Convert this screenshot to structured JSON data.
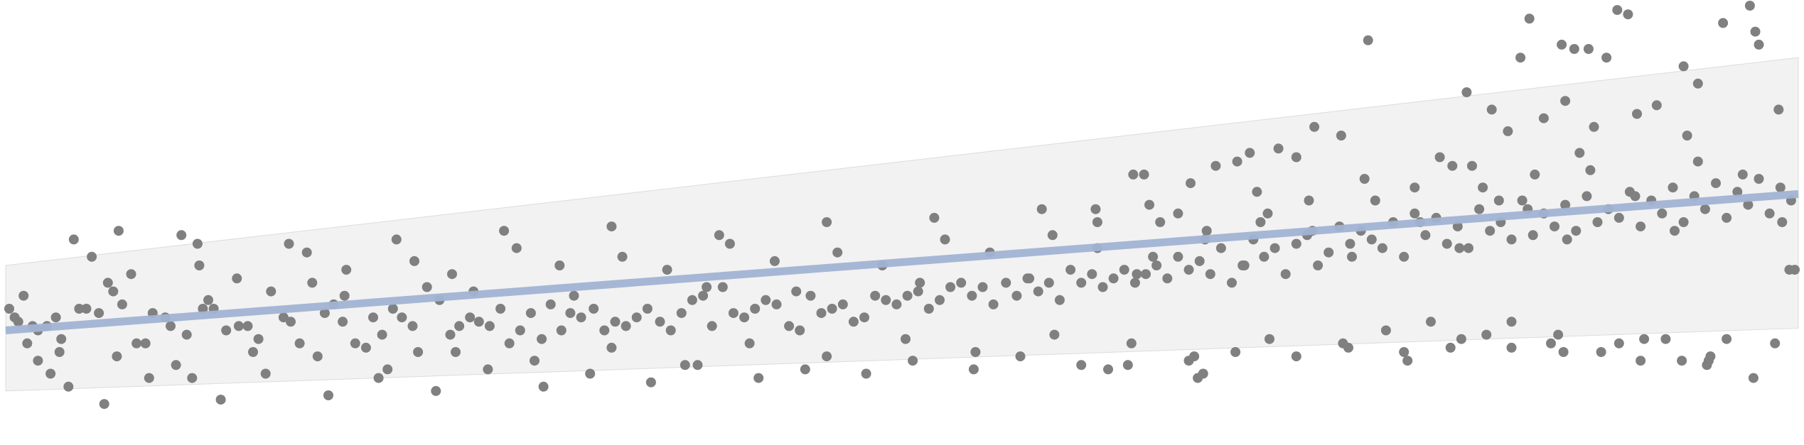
{
  "chart_data": {
    "type": "scatter",
    "title": "",
    "xlabel": "",
    "ylabel": "",
    "xlim": [
      0,
      100
    ],
    "ylim": [
      0,
      100
    ],
    "grid": false,
    "colors": {
      "points": "#808080",
      "trend_line": "#a1b4d4",
      "band_fill": "#f2f2f2",
      "band_edge": "#dcdcdc"
    },
    "trend": {
      "x": [
        0,
        100
      ],
      "y": [
        25,
        56.5
      ]
    },
    "band": {
      "upper": {
        "x": [
          0,
          100
        ],
        "y": [
          40,
          88
        ]
      },
      "lower": {
        "x": [
          0,
          100
        ],
        "y": [
          11,
          25.5
        ]
      }
    },
    "points": [
      [
        0.2,
        30
      ],
      [
        0.5,
        28
      ],
      [
        0.7,
        27
      ],
      [
        1.2,
        22
      ],
      [
        1.5,
        26
      ],
      [
        1.8,
        25
      ],
      [
        2.3,
        26
      ],
      [
        2.8,
        28
      ],
      [
        3.1,
        23
      ],
      [
        3.5,
        12
      ],
      [
        4.1,
        30
      ],
      [
        4.5,
        30
      ],
      [
        5.2,
        29
      ],
      [
        5.7,
        36
      ],
      [
        6.0,
        34
      ],
      [
        6.5,
        31
      ],
      [
        7.3,
        22
      ],
      [
        7.8,
        22
      ],
      [
        8.2,
        29
      ],
      [
        8.9,
        28
      ],
      [
        9.2,
        26
      ],
      [
        10.1,
        24
      ],
      [
        10.4,
        14
      ],
      [
        11.0,
        30
      ],
      [
        11.6,
        30
      ],
      [
        12.3,
        25
      ],
      [
        13.0,
        26
      ],
      [
        13.5,
        26
      ],
      [
        14.1,
        23
      ],
      [
        14.8,
        34
      ],
      [
        15.5,
        28
      ],
      [
        15.9,
        27
      ],
      [
        16.4,
        22
      ],
      [
        17.1,
        36
      ],
      [
        17.8,
        29
      ],
      [
        18.3,
        31
      ],
      [
        18.8,
        27
      ],
      [
        19.5,
        22
      ],
      [
        20.1,
        21
      ],
      [
        20.5,
        28
      ],
      [
        21.0,
        24
      ],
      [
        21.6,
        30
      ],
      [
        22.1,
        28
      ],
      [
        22.7,
        26
      ],
      [
        23.0,
        20
      ],
      [
        23.5,
        35
      ],
      [
        24.2,
        32
      ],
      [
        24.8,
        24
      ],
      [
        25.3,
        26
      ],
      [
        25.9,
        28
      ],
      [
        26.4,
        27
      ],
      [
        27.0,
        26
      ],
      [
        27.6,
        30
      ],
      [
        28.1,
        22
      ],
      [
        28.7,
        25
      ],
      [
        29.3,
        29
      ],
      [
        29.9,
        23
      ],
      [
        30.4,
        31
      ],
      [
        31.0,
        25
      ],
      [
        31.5,
        29
      ],
      [
        32.1,
        28
      ],
      [
        32.8,
        30
      ],
      [
        33.4,
        25
      ],
      [
        34.0,
        27
      ],
      [
        34.6,
        26
      ],
      [
        35.2,
        28
      ],
      [
        35.8,
        30
      ],
      [
        36.5,
        27
      ],
      [
        37.1,
        25
      ],
      [
        37.7,
        29
      ],
      [
        38.3,
        32
      ],
      [
        38.9,
        33
      ],
      [
        39.4,
        26
      ],
      [
        40.0,
        35
      ],
      [
        40.6,
        29
      ],
      [
        41.2,
        28
      ],
      [
        41.8,
        30
      ],
      [
        42.4,
        32
      ],
      [
        43.0,
        31
      ],
      [
        43.7,
        26
      ],
      [
        44.3,
        25
      ],
      [
        44.9,
        33
      ],
      [
        45.5,
        29
      ],
      [
        46.1,
        30
      ],
      [
        46.7,
        31
      ],
      [
        47.3,
        27
      ],
      [
        47.9,
        28
      ],
      [
        48.5,
        33
      ],
      [
        49.1,
        32
      ],
      [
        49.7,
        31
      ],
      [
        50.3,
        33
      ],
      [
        50.9,
        34
      ],
      [
        51.5,
        30
      ],
      [
        52.1,
        32
      ],
      [
        52.7,
        35
      ],
      [
        53.3,
        36
      ],
      [
        53.9,
        33
      ],
      [
        54.5,
        35
      ],
      [
        55.1,
        31
      ],
      [
        55.8,
        36
      ],
      [
        56.4,
        33
      ],
      [
        57.0,
        37
      ],
      [
        57.6,
        34
      ],
      [
        58.2,
        36
      ],
      [
        58.8,
        32
      ],
      [
        59.4,
        39
      ],
      [
        60.0,
        36
      ],
      [
        60.6,
        38
      ],
      [
        61.2,
        35
      ],
      [
        61.8,
        37
      ],
      [
        62.4,
        39
      ],
      [
        63.0,
        36
      ],
      [
        63.6,
        38
      ],
      [
        64.2,
        40
      ],
      [
        64.8,
        37
      ],
      [
        65.4,
        42
      ],
      [
        66.0,
        39
      ],
      [
        66.6,
        41
      ],
      [
        67.2,
        38
      ],
      [
        67.8,
        44
      ],
      [
        68.4,
        36
      ],
      [
        69.0,
        40
      ],
      [
        69.6,
        46
      ],
      [
        70.2,
        42
      ],
      [
        70.8,
        44
      ],
      [
        71.4,
        38
      ],
      [
        72.0,
        45
      ],
      [
        72.6,
        47
      ],
      [
        73.2,
        40
      ],
      [
        73.8,
        43
      ],
      [
        74.4,
        49
      ],
      [
        75.0,
        45
      ],
      [
        75.6,
        48
      ],
      [
        76.2,
        46
      ],
      [
        76.8,
        44
      ],
      [
        77.4,
        50
      ],
      [
        78.0,
        42
      ],
      [
        78.6,
        52
      ],
      [
        79.2,
        47
      ],
      [
        79.8,
        51
      ],
      [
        80.4,
        45
      ],
      [
        81.0,
        49
      ],
      [
        81.6,
        44
      ],
      [
        82.2,
        53
      ],
      [
        82.8,
        48
      ],
      [
        83.4,
        50
      ],
      [
        84.0,
        46
      ],
      [
        84.6,
        55
      ],
      [
        85.2,
        47
      ],
      [
        85.8,
        52
      ],
      [
        86.4,
        49
      ],
      [
        87.0,
        54
      ],
      [
        87.6,
        48
      ],
      [
        88.2,
        56
      ],
      [
        88.8,
        50
      ],
      [
        89.4,
        53
      ],
      [
        90.0,
        51
      ],
      [
        90.6,
        57
      ],
      [
        91.2,
        49
      ],
      [
        91.8,
        55
      ],
      [
        92.4,
        52
      ],
      [
        93.0,
        58
      ],
      [
        93.6,
        50
      ],
      [
        94.2,
        56
      ],
      [
        94.8,
        53
      ],
      [
        95.4,
        59
      ],
      [
        96.0,
        51
      ],
      [
        96.6,
        57
      ],
      [
        97.2,
        54
      ],
      [
        97.8,
        60
      ],
      [
        98.4,
        52
      ],
      [
        99.0,
        58
      ],
      [
        99.6,
        55
      ],
      [
        1.8,
        18
      ],
      [
        3.0,
        20
      ],
      [
        6.2,
        19
      ],
      [
        9.5,
        17
      ],
      [
        13.8,
        20
      ],
      [
        17.4,
        19
      ],
      [
        21.3,
        16
      ],
      [
        25.1,
        20
      ],
      [
        29.5,
        18
      ],
      [
        33.8,
        21
      ],
      [
        37.9,
        17
      ],
      [
        41.5,
        22
      ],
      [
        45.8,
        19
      ],
      [
        50.2,
        23
      ],
      [
        54.1,
        20
      ],
      [
        58.5,
        24
      ],
      [
        62.8,
        22
      ],
      [
        66.3,
        19
      ],
      [
        70.5,
        23
      ],
      [
        74.9,
        21
      ],
      [
        78.2,
        18
      ],
      [
        82.6,
        24
      ],
      [
        86.9,
        20
      ],
      [
        91.4,
        23
      ],
      [
        95.1,
        19
      ],
      [
        98.7,
        22
      ],
      [
        4.8,
        42
      ],
      [
        10.8,
        40
      ],
      [
        16.8,
        43
      ],
      [
        22.8,
        41
      ],
      [
        28.5,
        44
      ],
      [
        34.4,
        42
      ],
      [
        40.4,
        45
      ],
      [
        46.4,
        43
      ],
      [
        52.4,
        46
      ],
      [
        58.4,
        47
      ],
      [
        64.4,
        50
      ],
      [
        70.4,
        52
      ],
      [
        76.4,
        55
      ],
      [
        82.4,
        58
      ],
      [
        88.4,
        62
      ],
      [
        94.4,
        64
      ],
      [
        7.0,
        38
      ],
      [
        12.9,
        37
      ],
      [
        19.0,
        39
      ],
      [
        24.9,
        38
      ],
      [
        30.9,
        40
      ],
      [
        36.9,
        39
      ],
      [
        42.9,
        41
      ],
      [
        48.9,
        40
      ],
      [
        54.9,
        43
      ],
      [
        60.9,
        44
      ],
      [
        66.9,
        46
      ],
      [
        72.9,
        48
      ],
      [
        78.9,
        50
      ],
      [
        84.9,
        53
      ],
      [
        90.9,
        56
      ],
      [
        96.9,
        61
      ],
      [
        2.5,
        15
      ],
      [
        8.0,
        14
      ],
      [
        14.5,
        15
      ],
      [
        20.8,
        14
      ],
      [
        26.9,
        16
      ],
      [
        32.6,
        15
      ],
      [
        38.6,
        17
      ],
      [
        44.6,
        16
      ],
      [
        50.6,
        18
      ],
      [
        56.6,
        19
      ],
      [
        62.6,
        17
      ],
      [
        68.6,
        20
      ],
      [
        74.6,
        22
      ],
      [
        80.6,
        21
      ],
      [
        86.6,
        24
      ],
      [
        92.6,
        23
      ],
      [
        5.5,
        8
      ],
      [
        12.0,
        9
      ],
      [
        18.0,
        10
      ],
      [
        24.0,
        11
      ],
      [
        30.0,
        12
      ],
      [
        36.0,
        13
      ],
      [
        42.0,
        14
      ],
      [
        48.0,
        15
      ],
      [
        54.0,
        16
      ],
      [
        60.0,
        17
      ],
      [
        66.0,
        18
      ],
      [
        72.0,
        19
      ],
      [
        78.0,
        20
      ],
      [
        84.0,
        21
      ],
      [
        90.0,
        22
      ],
      [
        96.0,
        23
      ],
      [
        3.8,
        46
      ],
      [
        9.8,
        47
      ],
      [
        15.8,
        45
      ],
      [
        21.8,
        46
      ],
      [
        27.8,
        48
      ],
      [
        33.8,
        49
      ],
      [
        39.8,
        47
      ],
      [
        45.8,
        50
      ],
      [
        51.8,
        51
      ],
      [
        57.8,
        53
      ],
      [
        63.8,
        54
      ],
      [
        69.8,
        57
      ],
      [
        75.8,
        60
      ],
      [
        81.8,
        63
      ],
      [
        87.8,
        66
      ],
      [
        93.8,
        70
      ],
      [
        1.0,
        33
      ],
      [
        11.3,
        32
      ],
      [
        18.9,
        33
      ],
      [
        26.1,
        34
      ],
      [
        31.7,
        33
      ],
      [
        39.1,
        35
      ],
      [
        44.1,
        34
      ],
      [
        51.0,
        36
      ],
      [
        57.1,
        37
      ],
      [
        63.1,
        38
      ],
      [
        69.1,
        40
      ],
      [
        75.1,
        42
      ],
      [
        81.1,
        44
      ],
      [
        87.1,
        46
      ],
      [
        93.1,
        48
      ],
      [
        99.1,
        50
      ],
      [
        76.0,
        92
      ],
      [
        85.0,
        97
      ],
      [
        89.9,
        99
      ],
      [
        90.5,
        98
      ],
      [
        95.8,
        96
      ],
      [
        97.3,
        100
      ],
      [
        97.6,
        94
      ],
      [
        84.5,
        88
      ],
      [
        86.8,
        91
      ],
      [
        87.5,
        90
      ],
      [
        88.3,
        90
      ],
      [
        89.3,
        88
      ],
      [
        93.6,
        86
      ],
      [
        94.4,
        82
      ],
      [
        97.8,
        91
      ],
      [
        98.9,
        76
      ],
      [
        67.5,
        63
      ],
      [
        68.7,
        64
      ],
      [
        69.4,
        66
      ],
      [
        71.0,
        67
      ],
      [
        72.0,
        65
      ],
      [
        73.0,
        72
      ],
      [
        74.5,
        70
      ],
      [
        81.5,
        80
      ],
      [
        83.8,
        71
      ],
      [
        82.9,
        76
      ],
      [
        80.0,
        65
      ],
      [
        85.8,
        74
      ],
      [
        87.0,
        78
      ],
      [
        88.6,
        72
      ],
      [
        91.0,
        75
      ],
      [
        92.1,
        77
      ],
      [
        61.5,
        16
      ],
      [
        66.5,
        14
      ],
      [
        66.8,
        15
      ],
      [
        77.0,
        25
      ],
      [
        79.5,
        27
      ],
      [
        84.0,
        27
      ],
      [
        86.2,
        22
      ],
      [
        89.0,
        20
      ],
      [
        91.2,
        18
      ],
      [
        93.5,
        18
      ],
      [
        94.9,
        17
      ],
      [
        95.0,
        18
      ],
      [
        97.5,
        14
      ],
      [
        99.8,
        39
      ],
      [
        99.5,
        39
      ],
      [
        81.2,
        23
      ],
      [
        6.3,
        48
      ],
      [
        10.7,
        45
      ],
      [
        60.9,
        50
      ],
      [
        62.9,
        61
      ],
      [
        63.5,
        61
      ],
      [
        65.4,
        52
      ],
      [
        66.1,
        59
      ],
      [
        60.8,
        53
      ],
      [
        64.0,
        42
      ],
      [
        67.0,
        48
      ],
      [
        70.0,
        50
      ],
      [
        72.7,
        55
      ],
      [
        78.6,
        58
      ],
      [
        80.7,
        63
      ],
      [
        83.3,
        55
      ],
      [
        85.3,
        61
      ]
    ]
  }
}
